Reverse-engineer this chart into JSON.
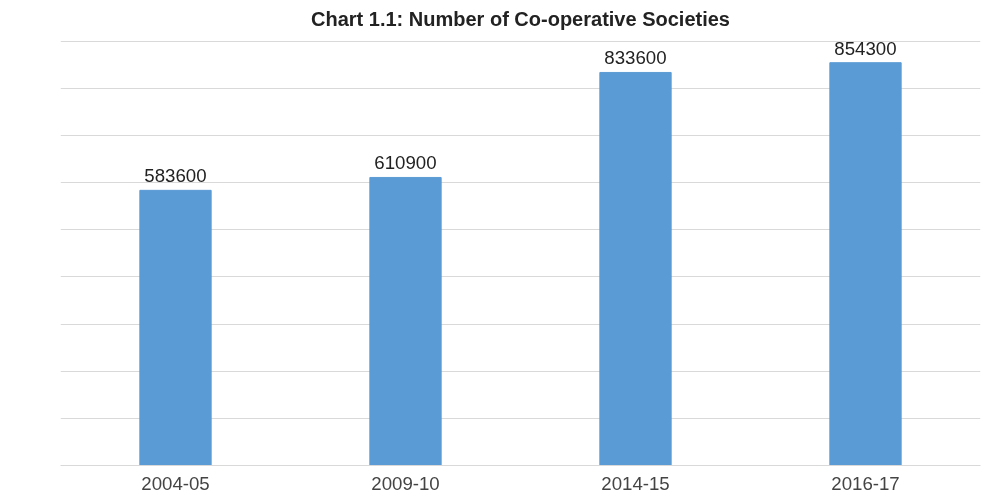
{
  "chart_data": {
    "type": "bar",
    "title": "Chart 1.1: Number of Co-operative Societies",
    "categories": [
      "2004-05",
      "2009-10",
      "2014-15",
      "2016-17"
    ],
    "values": [
      583600,
      610900,
      833600,
      854300
    ],
    "color": "#5b9bd5",
    "data_labels": true,
    "grid": "y",
    "tick_labels": "x"
  }
}
